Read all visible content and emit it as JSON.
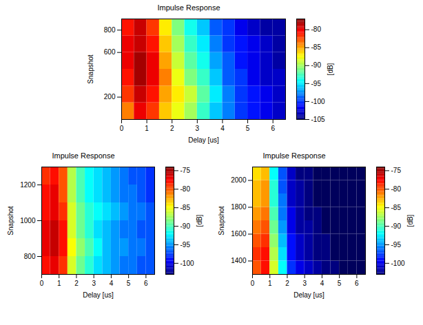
{
  "chart_data": [
    {
      "type": "heatmap",
      "title": "Impulse Response",
      "xlabel": "Delay [us]",
      "ylabel": "Snapshot",
      "xlim": [
        0,
        6.5
      ],
      "xticks": [
        0,
        1,
        2,
        3,
        4,
        5,
        6
      ],
      "ylim": [
        0,
        900
      ],
      "yticks": [
        200,
        600,
        800
      ],
      "xbins": [
        0,
        0.5,
        1,
        1.5,
        2,
        2.5,
        3,
        3.5,
        4,
        4.5,
        5,
        5.5,
        6,
        6.5
      ],
      "ybins": [
        0,
        150,
        300,
        450,
        600,
        750,
        900
      ],
      "values": [
        [
          -84,
          -80,
          -82,
          -86,
          -88,
          -90,
          -93,
          -96,
          -98,
          -100,
          -101,
          -102,
          -103
        ],
        [
          -82,
          -79,
          -81,
          -85,
          -87,
          -89,
          -92,
          -95,
          -98,
          -100,
          -101,
          -102,
          -103
        ],
        [
          -81,
          -78,
          -80,
          -84,
          -88,
          -91,
          -93,
          -96,
          -99,
          -100,
          -102,
          -103,
          -103
        ],
        [
          -80,
          -78,
          -80,
          -85,
          -89,
          -92,
          -94,
          -97,
          -99,
          -101,
          -102,
          -103,
          -104
        ],
        [
          -80,
          -79,
          -81,
          -86,
          -90,
          -93,
          -95,
          -98,
          -100,
          -101,
          -102,
          -103,
          -104
        ],
        [
          -81,
          -79,
          -82,
          -87,
          -91,
          -94,
          -96,
          -99,
          -100,
          -102,
          -103,
          -104,
          -104
        ]
      ],
      "colorbar": {
        "label": "[dB]",
        "range": [
          -105,
          -77
        ],
        "ticks": [
          -105,
          -100,
          -95,
          -90,
          -85,
          -80
        ]
      }
    },
    {
      "type": "heatmap",
      "title": "Impulse Response",
      "xlabel": "Delay [us]",
      "ylabel": "Snapshot",
      "xlim": [
        0,
        6.5
      ],
      "xticks": [
        0,
        1,
        2,
        3,
        4,
        5,
        6
      ],
      "ylim": [
        700,
        1300
      ],
      "yticks": [
        800,
        1000,
        1200
      ],
      "xbins": [
        0,
        0.5,
        1,
        1.5,
        2,
        2.5,
        3,
        3.5,
        4,
        4.5,
        5,
        5.5,
        6,
        6.5
      ],
      "ybins": [
        700,
        800,
        900,
        1000,
        1100,
        1200,
        1300
      ],
      "values": [
        [
          -78,
          -77,
          -79,
          -86,
          -89,
          -91,
          -93,
          -94,
          -95,
          -96,
          -96,
          -97,
          -97
        ],
        [
          -77,
          -76,
          -78,
          -85,
          -88,
          -90,
          -92,
          -94,
          -95,
          -95,
          -96,
          -96,
          -97
        ],
        [
          -77,
          -76,
          -78,
          -86,
          -89,
          -91,
          -93,
          -94,
          -95,
          -96,
          -96,
          -97,
          -97
        ],
        [
          -78,
          -77,
          -79,
          -86,
          -89,
          -91,
          -92,
          -93,
          -94,
          -95,
          -96,
          -96,
          -97
        ],
        [
          -78,
          -77,
          -80,
          -87,
          -90,
          -92,
          -93,
          -94,
          -95,
          -96,
          -96,
          -97,
          -98
        ],
        [
          -79,
          -78,
          -80,
          -87,
          -90,
          -92,
          -93,
          -94,
          -95,
          -96,
          -97,
          -97,
          -98
        ]
      ],
      "colorbar": {
        "label": "[dB]",
        "range": [
          -103,
          -74
        ],
        "ticks": [
          -100,
          -95,
          -90,
          -85,
          -80,
          -75
        ]
      }
    },
    {
      "type": "heatmap",
      "title": "Impulse Response",
      "xlabel": "Delay [us]",
      "ylabel": "Snapshot",
      "xlim": [
        0,
        6.5
      ],
      "xticks": [
        0,
        1,
        2,
        3,
        4,
        5,
        6
      ],
      "ylim": [
        1300,
        2100
      ],
      "yticks": [
        1400,
        1600,
        1800,
        2000
      ],
      "xbins": [
        0,
        0.5,
        1,
        1.5,
        2,
        2.5,
        3,
        3.5,
        4,
        4.5,
        5,
        5.5,
        6,
        6.5
      ],
      "ybins": [
        1300,
        1400,
        1500,
        1600,
        1700,
        1800,
        1900,
        2000,
        2100
      ],
      "values": [
        [
          -80,
          -78,
          -86,
          -92,
          -98,
          -100,
          -101,
          -102,
          -103,
          -103,
          -104,
          -104,
          -104
        ],
        [
          -79,
          -78,
          -87,
          -93,
          -99,
          -101,
          -102,
          -103,
          -103,
          -104,
          -104,
          -104,
          -104
        ],
        [
          -80,
          -79,
          -88,
          -94,
          -99,
          -101,
          -102,
          -103,
          -103,
          -104,
          -104,
          -104,
          -104
        ],
        [
          -81,
          -80,
          -89,
          -95,
          -100,
          -102,
          -102,
          -103,
          -104,
          -104,
          -104,
          -104,
          -104
        ],
        [
          -82,
          -81,
          -90,
          -96,
          -100,
          -102,
          -103,
          -103,
          -104,
          -104,
          -104,
          -104,
          -104
        ],
        [
          -83,
          -82,
          -91,
          -96,
          -101,
          -102,
          -103,
          -104,
          -104,
          -104,
          -104,
          -104,
          -104
        ],
        [
          -83,
          -82,
          -91,
          -97,
          -101,
          -102,
          -103,
          -104,
          -104,
          -104,
          -104,
          -104,
          -104
        ],
        [
          -84,
          -83,
          -92,
          -97,
          -101,
          -103,
          -103,
          -104,
          -104,
          -104,
          -104,
          -104,
          -104
        ]
      ],
      "colorbar": {
        "label": "[dB]",
        "range": [
          -103,
          -74
        ],
        "ticks": [
          -100,
          -95,
          -90,
          -85,
          -80,
          -75
        ]
      }
    }
  ]
}
